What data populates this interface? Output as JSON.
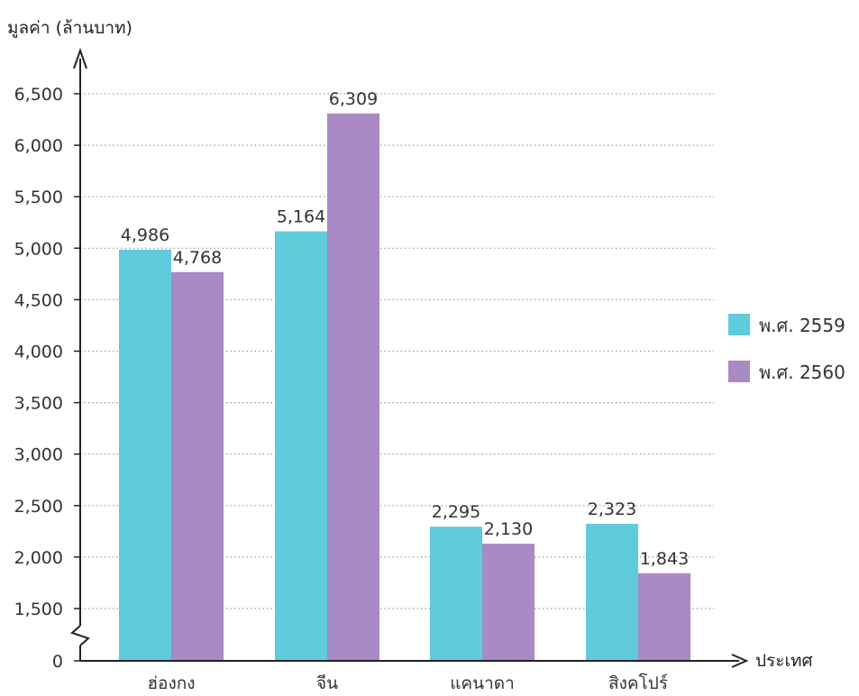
{
  "chart_data": {
    "type": "bar",
    "ylabel": "มูลค่า (ล้านบาท)",
    "xlabel": "ประเทศ",
    "categories": [
      "ฮ่องกง",
      "จีน",
      "แคนาดา",
      "สิงคโปร์"
    ],
    "series": [
      {
        "name": "พ.ศ. 2559",
        "values": [
          4986,
          5164,
          2295,
          2323
        ],
        "labels": [
          "4,986",
          "5,164",
          "2,295",
          "2,323"
        ],
        "color": "#5fcbdc"
      },
      {
        "name": "พ.ศ. 2560",
        "values": [
          4768,
          6309,
          2130,
          1843
        ],
        "labels": [
          "4,768",
          "6,309",
          "2,130",
          "1,843"
        ],
        "color": "#a98ac4"
      }
    ],
    "yticks": [
      0,
      1500,
      2000,
      2500,
      3000,
      3500,
      4000,
      4500,
      5000,
      5500,
      6000,
      6500
    ],
    "ytick_labels": [
      "0",
      "1,500",
      "2,000",
      "2,500",
      "3,000",
      "3,500",
      "4,000",
      "4,500",
      "5,000",
      "5,500",
      "6,000",
      "6,500"
    ],
    "ylim": [
      0,
      6500
    ],
    "axis_break": true,
    "grid": true,
    "legend_position": "right"
  }
}
